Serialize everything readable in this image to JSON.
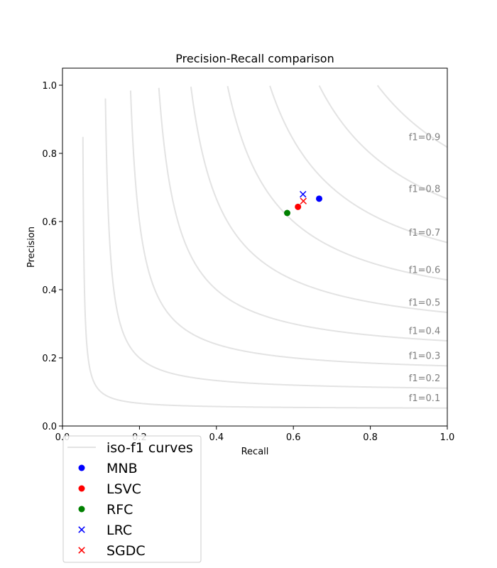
{
  "chart_data": {
    "type": "scatter",
    "title": "Precision-Recall comparison",
    "xlabel": "Recall",
    "ylabel": "Precision",
    "xlim": [
      0.0,
      1.0
    ],
    "ylim": [
      0.0,
      1.05
    ],
    "x_ticks": [
      "0.0",
      "0.2",
      "0.4",
      "0.6",
      "0.8",
      "1.0"
    ],
    "y_ticks": [
      "0.0",
      "0.2",
      "0.4",
      "0.6",
      "0.8",
      "1.0"
    ],
    "grid": false,
    "legend_position": "below-left",
    "iso_f1": {
      "name": "iso-f1 curves",
      "color": "#e3e3e3",
      "label_color": "#808080",
      "values": [
        0.1,
        0.2,
        0.3,
        0.4,
        0.5,
        0.6,
        0.7,
        0.8,
        0.9
      ],
      "labels": [
        "f1=0.1",
        "f1=0.2",
        "f1=0.3",
        "f1=0.4",
        "f1=0.5",
        "f1=0.6",
        "f1=0.7",
        "f1=0.8",
        "f1=0.9"
      ]
    },
    "series": [
      {
        "name": "MNB",
        "marker": "circle",
        "color": "#0000ff",
        "recall": 0.667,
        "precision": 0.667
      },
      {
        "name": "LSVC",
        "marker": "circle",
        "color": "#ff0000",
        "recall": 0.612,
        "precision": 0.643
      },
      {
        "name": "RFC",
        "marker": "circle",
        "color": "#008000",
        "recall": 0.584,
        "precision": 0.625
      },
      {
        "name": "LRC",
        "marker": "x",
        "color": "#0000ff",
        "recall": 0.625,
        "precision": 0.68
      },
      {
        "name": "SGDC",
        "marker": "x",
        "color": "#ff0000",
        "recall": 0.626,
        "precision": 0.66
      }
    ]
  }
}
